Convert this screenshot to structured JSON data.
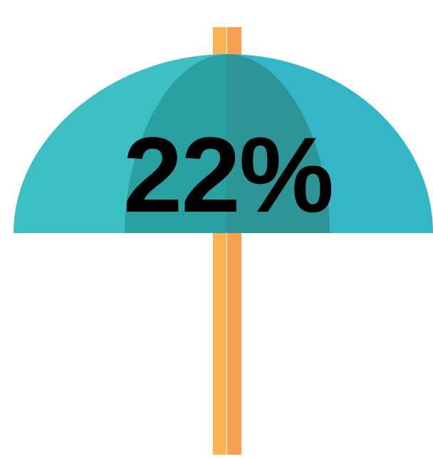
{
  "infographic": {
    "percent_text": "22%"
  },
  "colors": {
    "pole_left": "#F9B350",
    "pole_right": "#F7A052",
    "canopy_left": "#3DBFC4",
    "canopy_right": "#35B6C6",
    "canopy_inner_left": "#2AA1A1",
    "canopy_inner_right": "#2E9596",
    "text": "#000000"
  },
  "icons": {
    "umbrella": "umbrella-icon"
  }
}
